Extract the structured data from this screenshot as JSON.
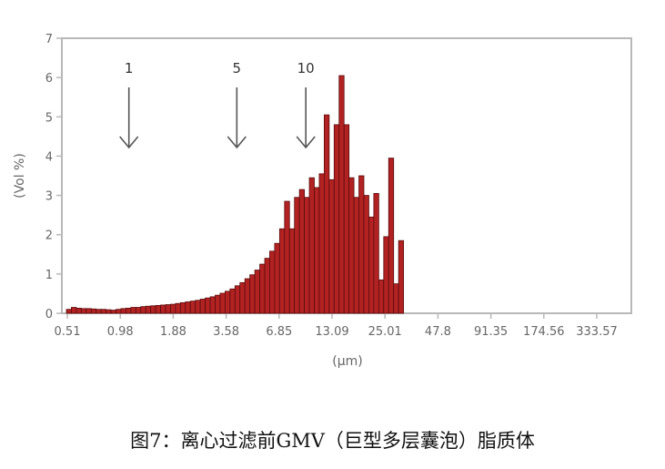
{
  "chart_data": {
    "type": "bar",
    "xlabel": "(μm)",
    "ylabel": "(Vol %)",
    "ylim": [
      0,
      7
    ],
    "yticks": [
      "0",
      "1",
      "2",
      "3",
      "4",
      "5",
      "6",
      "7"
    ],
    "x_tick_labels": [
      "0.51",
      "0.98",
      "1.88",
      "3.58",
      "6.85",
      "13.09",
      "25.01",
      "47.8",
      "91.35",
      "174.56",
      "333.57"
    ],
    "bar_color": "#b22222",
    "bar_edge_color": "#5a0c0c",
    "values": [
      0.1,
      0.15,
      0.13,
      0.12,
      0.12,
      0.11,
      0.1,
      0.1,
      0.09,
      0.08,
      0.1,
      0.12,
      0.13,
      0.15,
      0.15,
      0.17,
      0.18,
      0.19,
      0.2,
      0.21,
      0.22,
      0.23,
      0.25,
      0.27,
      0.29,
      0.31,
      0.33,
      0.36,
      0.39,
      0.42,
      0.46,
      0.51,
      0.56,
      0.62,
      0.7,
      0.78,
      0.88,
      0.98,
      1.1,
      1.25,
      1.4,
      1.58,
      1.78,
      2.15,
      2.85,
      2.15,
      2.95,
      3.15,
      2.95,
      3.45,
      3.2,
      3.55,
      5.05,
      3.4,
      4.8,
      6.05,
      4.8,
      3.45,
      2.95,
      3.5,
      3.0,
      2.45,
      3.05,
      0.85,
      1.95,
      3.95,
      0.75,
      1.85
    ],
    "annotations": [
      {
        "label": "1",
        "x": 1.09
      },
      {
        "label": "5",
        "x": 4.08
      },
      {
        "label": "10",
        "x": 9.5
      }
    ]
  },
  "caption": "图7：离心过滤前GMV（巨型多层囊泡）脂质体"
}
